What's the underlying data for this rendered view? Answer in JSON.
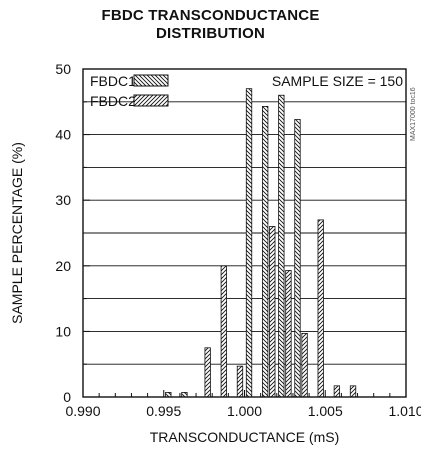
{
  "chart_data": {
    "type": "bar",
    "title_line1": "FBDC TRANSCONDUCTANCE",
    "title_line2": "DISTRIBUTION",
    "xlabel": "TRANSCONDUCTANCE (mS)",
    "ylabel": "SAMPLE PERCENTAGE (%)",
    "xlim": [
      0.99,
      1.01
    ],
    "ylim": [
      0,
      50
    ],
    "x_ticks": [
      "0.990",
      "0.995",
      "1.000",
      "1.005",
      "1.010"
    ],
    "y_ticks": [
      "0",
      "10",
      "20",
      "30",
      "40",
      "50"
    ],
    "annotation": "SAMPLE SIZE = 150",
    "watermark": "MAX17000 toc16",
    "legend_position": "top-left",
    "grid": "horizontal",
    "bin_centers": [
      0.9955,
      0.9965,
      0.9975,
      0.9985,
      0.9995,
      1.0005,
      1.0015,
      1.0025,
      1.0035,
      1.0045,
      1.0055,
      1.0065
    ],
    "series": [
      {
        "name": "FBDC1",
        "pattern": "back-diagonal-hatch",
        "values": [
          0.7,
          0.7,
          0,
          0,
          0,
          47,
          44.3,
          46,
          42.3,
          0,
          0,
          0
        ]
      },
      {
        "name": "FBDC2",
        "pattern": "forward-diagonal-hatch",
        "values": [
          0,
          0,
          7.5,
          20,
          4.7,
          0,
          26,
          19.3,
          9.7,
          27,
          1.7,
          1.7
        ]
      }
    ]
  }
}
